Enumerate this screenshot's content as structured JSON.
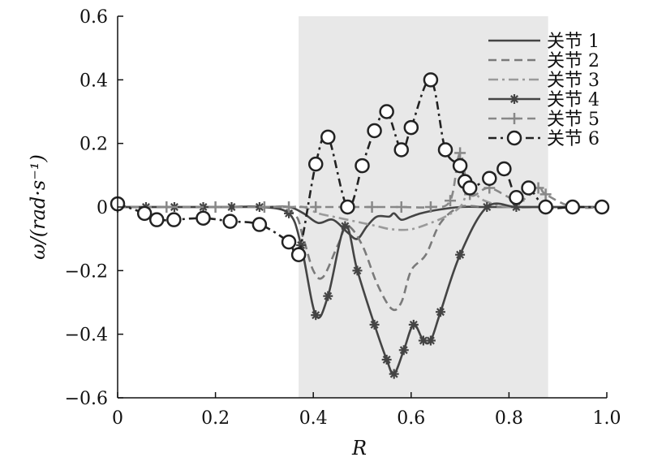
{
  "chart_data": {
    "type": "line",
    "xlabel": "R",
    "ylabel": "ω/(rad·s⁻¹)",
    "xlim": [
      0,
      1.0
    ],
    "ylim": [
      -0.6,
      0.6
    ],
    "x_ticks": [
      "0",
      "0.2",
      "0.4",
      "0.6",
      "0.8",
      "1.0"
    ],
    "y_ticks": [
      "0.6",
      "0.4",
      "0.2",
      "0",
      "−0.2",
      "−0.4",
      "−0.6"
    ],
    "grid": false,
    "legend_position": "top-right",
    "shaded_region": {
      "x": [
        0.37,
        0.88
      ],
      "color": "#e8e8e8"
    },
    "series": [
      {
        "name": "关节 1",
        "color": "#444444",
        "dash": "",
        "marker": "none",
        "x": [
          0,
          0.1,
          0.2,
          0.3,
          0.35,
          0.38,
          0.41,
          0.44,
          0.47,
          0.49,
          0.51,
          0.53,
          0.555,
          0.565,
          0.58,
          0.6,
          0.62,
          0.65,
          0.7,
          0.75,
          0.8,
          0.88,
          1.0
        ],
        "y": [
          0,
          0,
          0,
          0,
          0,
          -0.02,
          -0.05,
          -0.04,
          -0.08,
          -0.1,
          -0.06,
          -0.03,
          -0.03,
          -0.02,
          -0.04,
          -0.03,
          -0.02,
          -0.01,
          0,
          0,
          0,
          0,
          0
        ]
      },
      {
        "name": "关节 2",
        "color": "#7a7a7a",
        "dash": "10,6",
        "marker": "none",
        "x": [
          0,
          0.1,
          0.2,
          0.3,
          0.36,
          0.38,
          0.4,
          0.42,
          0.45,
          0.47,
          0.5,
          0.53,
          0.56,
          0.58,
          0.6,
          0.63,
          0.66,
          0.7,
          0.75,
          0.8,
          0.88,
          1.0
        ],
        "y": [
          0,
          0,
          0,
          0,
          -0.02,
          -0.1,
          -0.2,
          -0.22,
          -0.12,
          -0.06,
          -0.12,
          -0.24,
          -0.32,
          -0.3,
          -0.2,
          -0.15,
          -0.05,
          0,
          0,
          0,
          0,
          0
        ]
      },
      {
        "name": "关节 3",
        "color": "#9a9a9a",
        "dash": "12,5,3,5",
        "marker": "none",
        "x": [
          0,
          0.1,
          0.2,
          0.3,
          0.35,
          0.38,
          0.41,
          0.44,
          0.47,
          0.5,
          0.53,
          0.56,
          0.6,
          0.64,
          0.67,
          0.7,
          0.72,
          0.75,
          0.8,
          0.88,
          1.0
        ],
        "y": [
          0,
          0,
          0,
          0,
          0,
          0,
          -0.02,
          -0.03,
          -0.04,
          -0.05,
          -0.06,
          -0.07,
          -0.07,
          -0.05,
          -0.03,
          0,
          0.05,
          0.02,
          0,
          0,
          0
        ]
      },
      {
        "name": "关节 4",
        "color": "#444444",
        "dash": "",
        "marker": "star",
        "x": [
          0,
          0.058,
          0.116,
          0.175,
          0.233,
          0.29,
          0.35,
          0.375,
          0.405,
          0.43,
          0.465,
          0.49,
          0.525,
          0.55,
          0.565,
          0.585,
          0.605,
          0.625,
          0.64,
          0.66,
          0.7,
          0.755,
          0.815,
          0.875,
          0.93,
          0.99
        ],
        "y": [
          0,
          0,
          0,
          0,
          0,
          0,
          -0.02,
          -0.12,
          -0.34,
          -0.28,
          -0.06,
          -0.2,
          -0.37,
          -0.48,
          -0.525,
          -0.45,
          -0.37,
          -0.42,
          -0.42,
          -0.33,
          -0.15,
          0,
          0,
          0,
          0,
          0
        ]
      },
      {
        "name": "关节 5",
        "color": "#888888",
        "dash": "10,6",
        "marker": "plus",
        "x": [
          0,
          0.1,
          0.2,
          0.3,
          0.35,
          0.405,
          0.465,
          0.52,
          0.58,
          0.64,
          0.68,
          0.7,
          0.72,
          0.76,
          0.82,
          0.86,
          0.875,
          0.93,
          0.99
        ],
        "y": [
          0,
          0,
          0,
          0,
          0,
          0,
          0,
          0,
          0,
          0,
          0.02,
          0.17,
          0.04,
          0.06,
          0.02,
          0.06,
          0.04,
          0,
          0
        ]
      },
      {
        "name": "关节 6",
        "color": "#222222",
        "dash": "10,5,3,5",
        "marker": "circle",
        "x": [
          0,
          0.055,
          0.08,
          0.115,
          0.175,
          0.23,
          0.29,
          0.35,
          0.37,
          0.405,
          0.43,
          0.47,
          0.5,
          0.525,
          0.55,
          0.58,
          0.6,
          0.64,
          0.67,
          0.7,
          0.71,
          0.72,
          0.76,
          0.79,
          0.815,
          0.84,
          0.875,
          0.93,
          0.99
        ],
        "y": [
          0.01,
          -0.02,
          -0.04,
          -0.04,
          -0.035,
          -0.045,
          -0.055,
          -0.11,
          -0.15,
          0.135,
          0.22,
          0,
          0.13,
          0.24,
          0.3,
          0.18,
          0.25,
          0.4,
          0.18,
          0.13,
          0.08,
          0.06,
          0.09,
          0.12,
          0.03,
          0.06,
          0,
          0,
          0
        ]
      }
    ]
  }
}
